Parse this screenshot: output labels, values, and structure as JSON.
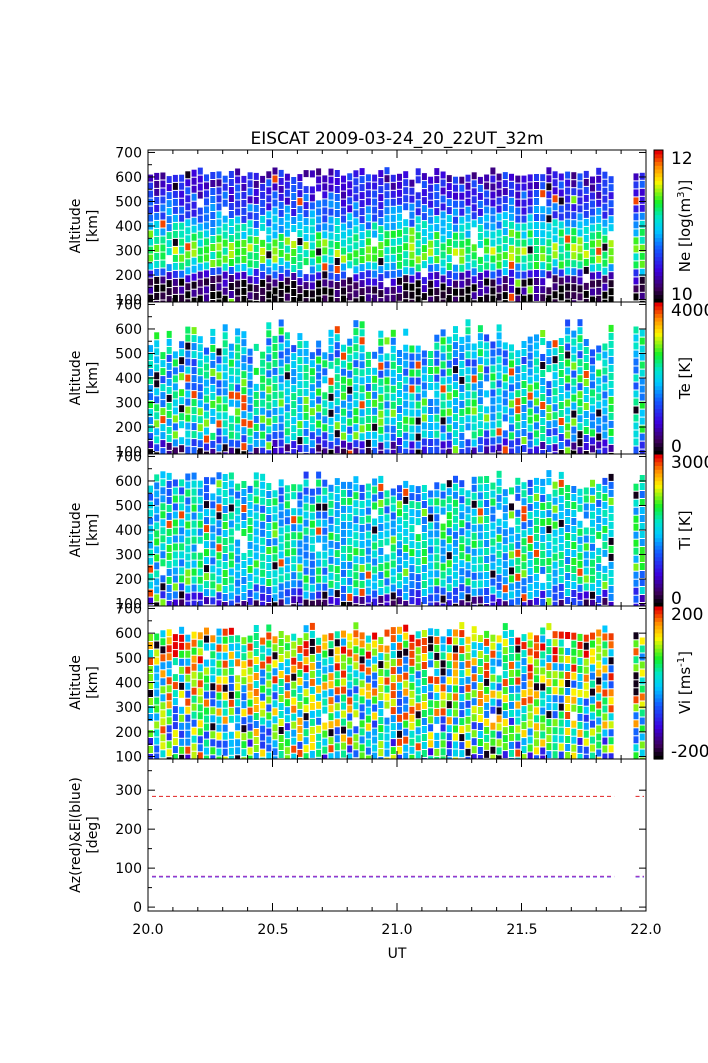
{
  "chart_data": {
    "title": "EISCAT 2009-03-24_20_22UT_32m",
    "x": {
      "label": "UT",
      "range": [
        20.0,
        22.0
      ],
      "ticks": [
        "20.0",
        "20.5",
        "21.0",
        "21.5",
        "22.0"
      ]
    },
    "data_gap_ut": [
      21.88,
      21.95
    ],
    "panels": [
      {
        "type": "heatmap",
        "ylabel": [
          "Altitude",
          "[km]"
        ],
        "ylim": [
          90,
          710
        ],
        "yticks": [
          100,
          200,
          300,
          400,
          500,
          600,
          700
        ],
        "colorbar": {
          "label_main": "Ne [log(m",
          "label_sup": "3",
          "label_end": ")]",
          "range": [
            10,
            12
          ],
          "ticks": [
            "12",
            "10"
          ]
        },
        "colormap": "rainbow",
        "profile": [
          [
            100,
            0.0
          ],
          [
            130,
            0.03
          ],
          [
            170,
            0.07
          ],
          [
            200,
            0.15
          ],
          [
            230,
            0.4
          ],
          [
            260,
            0.6
          ],
          [
            300,
            0.68
          ],
          [
            350,
            0.63
          ],
          [
            400,
            0.5
          ],
          [
            450,
            0.38
          ],
          [
            500,
            0.3
          ],
          [
            560,
            0.25
          ],
          [
            620,
            0.22
          ],
          [
            660,
            0.2
          ]
        ],
        "noise": 0.12,
        "outlier": 0.04,
        "top_alt": [
          600,
          640
        ],
        "seed": 11
      },
      {
        "type": "heatmap",
        "ylabel": [
          "Altitude",
          "[km]"
        ],
        "ylim": [
          90,
          710
        ],
        "yticks": [
          100,
          200,
          300,
          400,
          500,
          600,
          700
        ],
        "colorbar": {
          "label_main": "Te [K]",
          "label_sup": "",
          "label_end": "",
          "range": [
            0,
            4000
          ],
          "ticks": [
            "4000",
            "0"
          ]
        },
        "colormap": "rainbow",
        "profile": [
          [
            100,
            0.12
          ],
          [
            130,
            0.25
          ],
          [
            170,
            0.45
          ],
          [
            230,
            0.55
          ],
          [
            300,
            0.55
          ],
          [
            400,
            0.5
          ],
          [
            500,
            0.48
          ],
          [
            600,
            0.5
          ],
          [
            660,
            0.5
          ]
        ],
        "noise": 0.18,
        "outlier": 0.08,
        "top_alt": [
          500,
          640
        ],
        "seed": 23
      },
      {
        "type": "heatmap",
        "ylabel": [
          "Altitude",
          "[km]"
        ],
        "ylim": [
          90,
          710
        ],
        "yticks": [
          100,
          200,
          300,
          400,
          500,
          600,
          700
        ],
        "colorbar": {
          "label_main": "Ti [K]",
          "label_sup": "",
          "label_end": "",
          "range": [
            0,
            3000
          ],
          "ticks": [
            "3000",
            "0"
          ]
        },
        "colormap": "rainbow",
        "profile": [
          [
            100,
            0.12
          ],
          [
            150,
            0.35
          ],
          [
            200,
            0.5
          ],
          [
            300,
            0.53
          ],
          [
            400,
            0.52
          ],
          [
            500,
            0.5
          ],
          [
            600,
            0.47
          ],
          [
            660,
            0.45
          ]
        ],
        "noise": 0.16,
        "outlier": 0.07,
        "top_alt": [
          560,
          645
        ],
        "seed": 37
      },
      {
        "type": "heatmap",
        "ylabel": [
          "Altitude",
          "[km]"
        ],
        "ylim": [
          90,
          710
        ],
        "yticks": [
          100,
          200,
          300,
          400,
          500,
          600,
          700
        ],
        "colorbar": {
          "label_main": "Vi [ms",
          "label_sup": "-1",
          "label_end": "]",
          "range": [
            -200,
            200
          ],
          "ticks": [
            "200",
            "-200"
          ]
        },
        "colormap": "rainbow",
        "profile": [
          [
            100,
            0.5
          ],
          [
            200,
            0.55
          ],
          [
            300,
            0.6
          ],
          [
            400,
            0.65
          ],
          [
            500,
            0.7
          ],
          [
            600,
            0.75
          ],
          [
            660,
            0.75
          ]
        ],
        "noise": 0.32,
        "outlier": 0.12,
        "top_alt": [
          580,
          645
        ],
        "seed": 53
      },
      {
        "type": "line",
        "ylabel": [
          "Az(red)&El(blue)",
          "[deg]"
        ],
        "ylim": [
          -10,
          380
        ],
        "yticks": [
          0,
          100,
          200,
          300
        ],
        "series": [
          {
            "name": "Az",
            "color": "#e02020",
            "value": 284
          },
          {
            "name": "El",
            "color": "#2020e0",
            "value": 77.5
          },
          {
            "name": "Az-El overlap",
            "color": "#c040c0",
            "value": 79
          }
        ]
      }
    ]
  }
}
